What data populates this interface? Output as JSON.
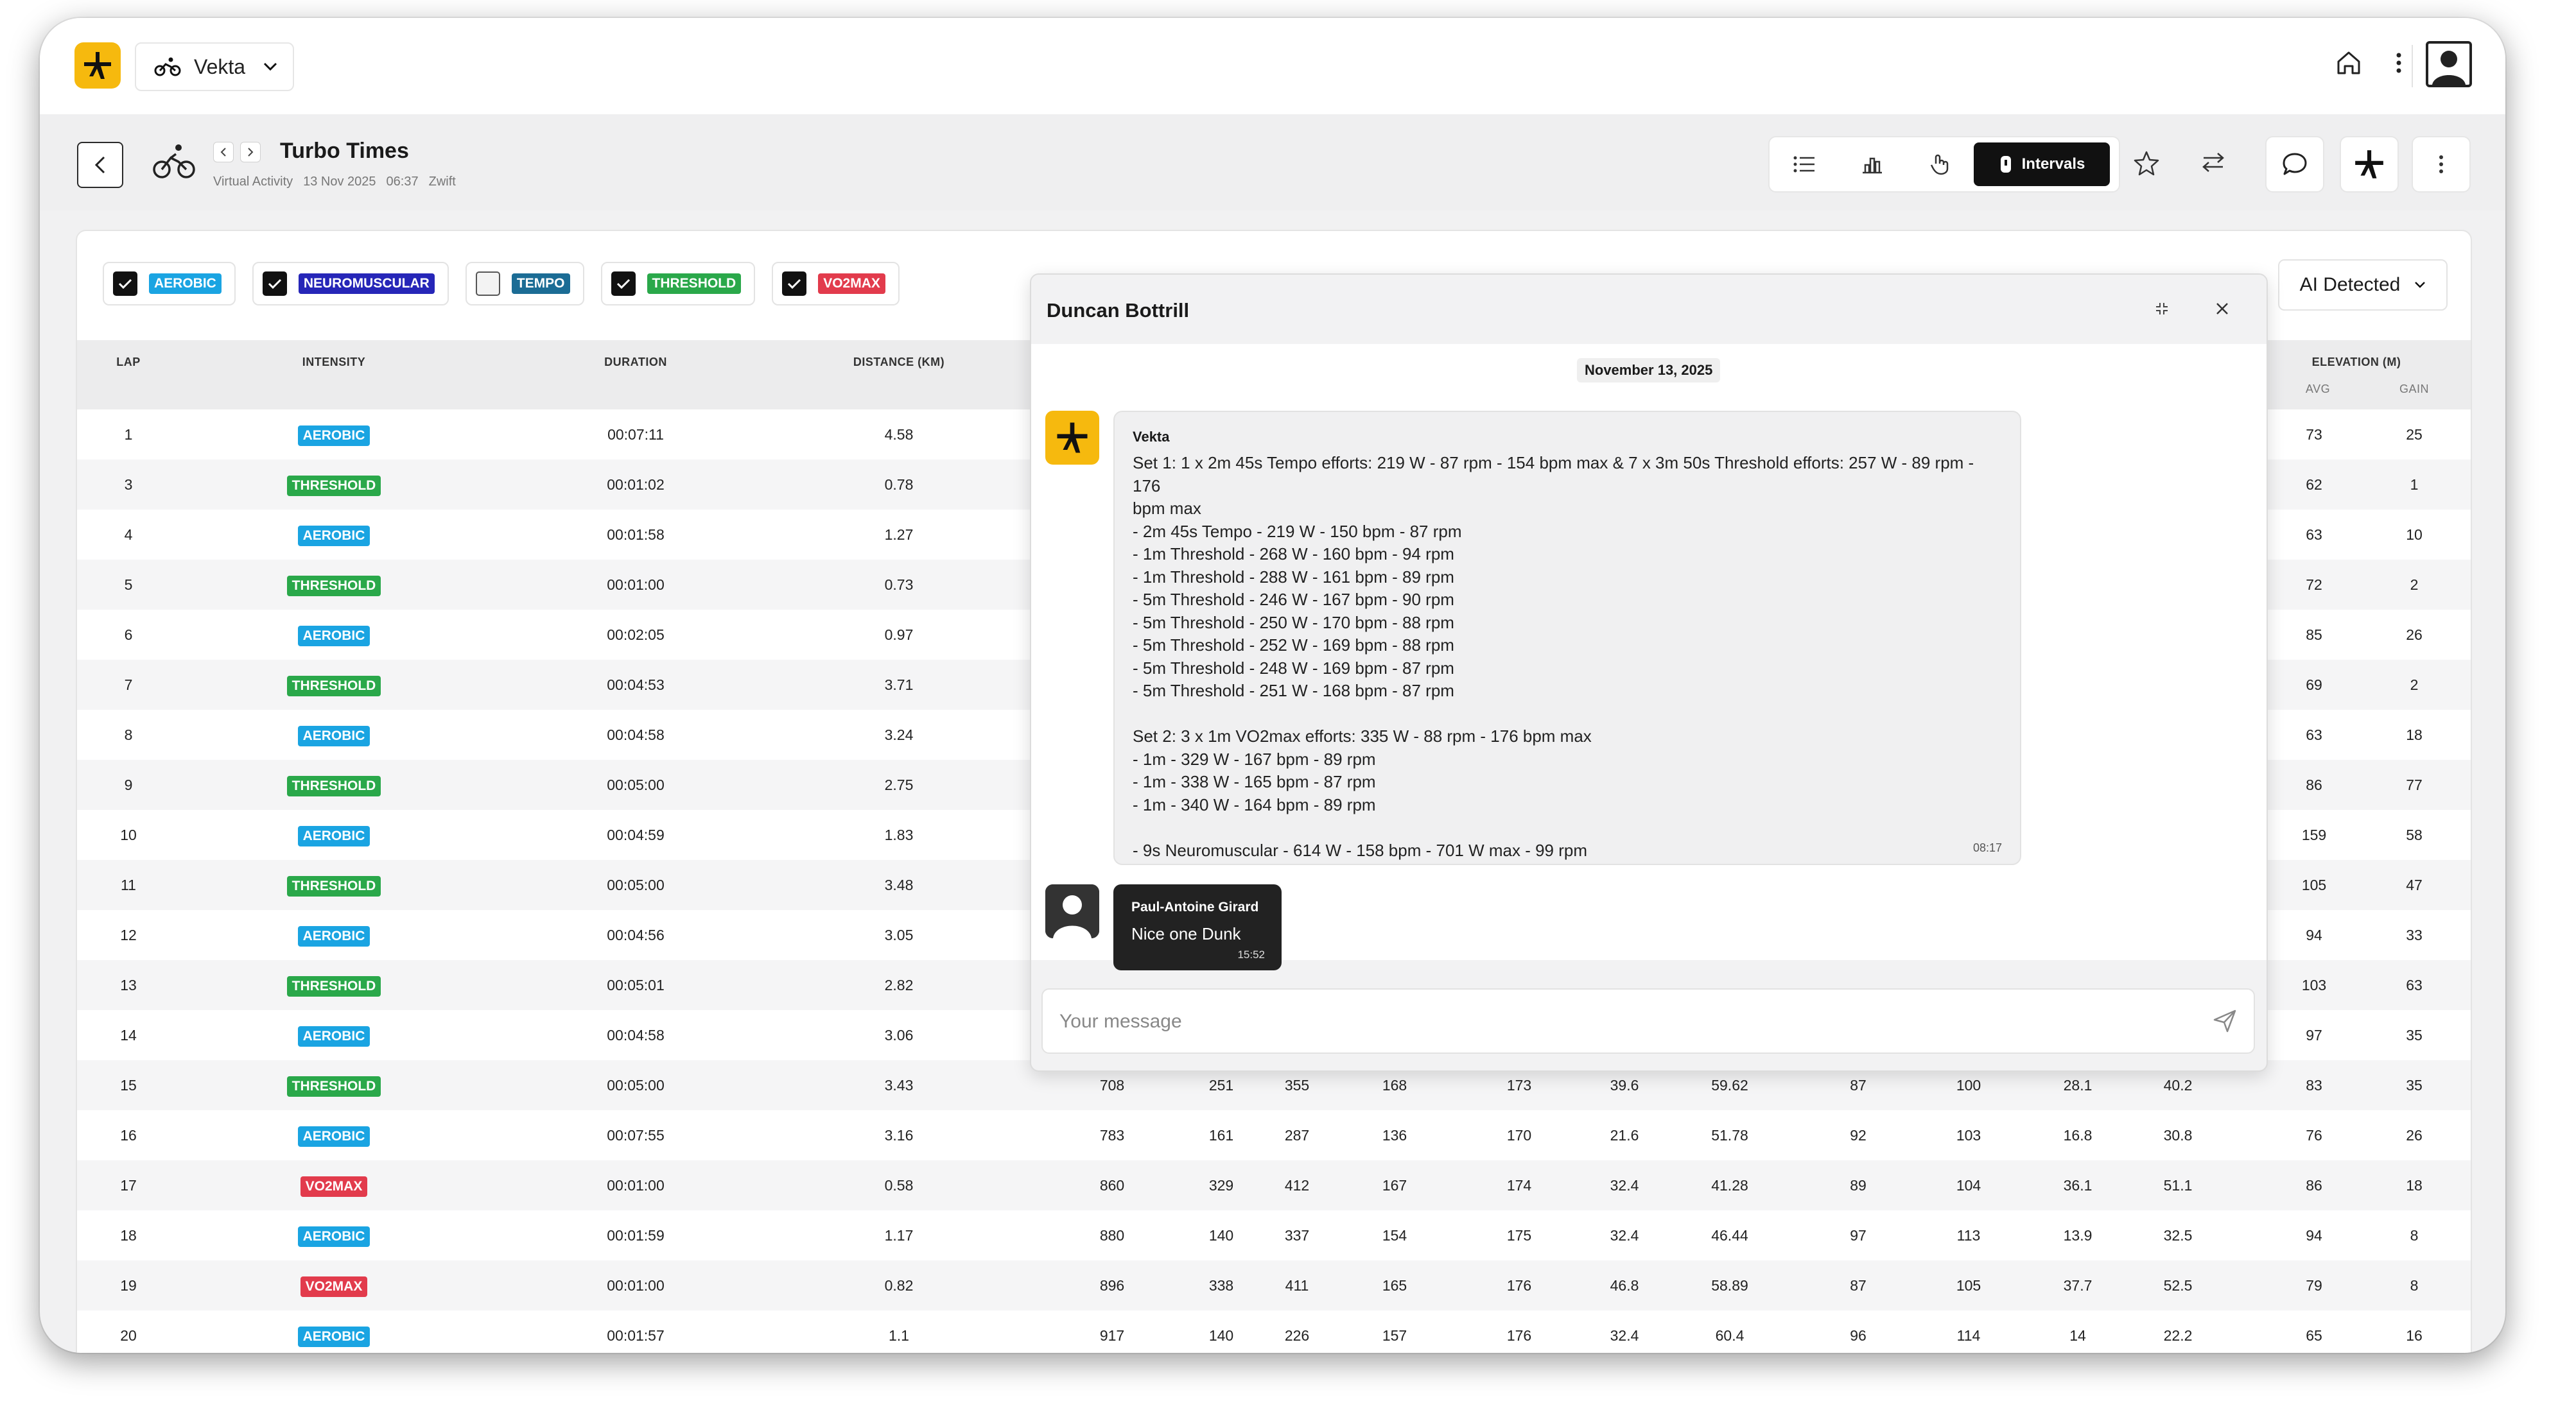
{
  "app": {
    "name": "Vekta"
  },
  "activity": {
    "title": "Turbo Times",
    "type": "Virtual Activity",
    "date": "13 Nov 2025",
    "time": "06:37",
    "platform": "Zwift"
  },
  "toolbar": {
    "active_tab": "Intervals"
  },
  "colors": {
    "aerobic": "#1aa4e2",
    "neuromuscular": "#2626b8",
    "tempo": "#1b6c95",
    "threshold": "#2aa84a",
    "vo2max": "#e23b4c",
    "brand": "#f6b90e"
  },
  "filters": [
    {
      "label": "AEROBIC",
      "checked": true,
      "color": "#1aa4e2"
    },
    {
      "label": "NEUROMUSCULAR",
      "checked": true,
      "color": "#2626b8"
    },
    {
      "label": "TEMPO",
      "checked": false,
      "color": "#1b6c95"
    },
    {
      "label": "THRESHOLD",
      "checked": true,
      "color": "#2aa84a"
    },
    {
      "label": "VO2MAX",
      "checked": true,
      "color": "#e23b4c"
    }
  ],
  "detection": {
    "selected": "AI Detected"
  },
  "table": {
    "headers": {
      "lap": "LAP",
      "intensity": "INTENSITY",
      "duration": "DURATION",
      "distance": "DISTANCE (KM)",
      "elevation": "ELEVATION (M)",
      "avg": "AVG",
      "gain": "GAIN"
    },
    "rows": [
      {
        "lap": "1",
        "intensity": "AEROBIC",
        "duration": "00:07:11",
        "distance": "4.58",
        "mid": [
          "",
          "",
          "",
          "",
          "",
          "",
          "",
          "",
          "",
          "",
          ""
        ],
        "elev_avg": "73",
        "elev_gain": "25"
      },
      {
        "lap": "3",
        "intensity": "THRESHOLD",
        "duration": "00:01:02",
        "distance": "0.78",
        "mid": [
          "",
          "",
          "",
          "",
          "",
          "",
          "",
          "",
          "",
          "",
          ""
        ],
        "elev_avg": "62",
        "elev_gain": "1"
      },
      {
        "lap": "4",
        "intensity": "AEROBIC",
        "duration": "00:01:58",
        "distance": "1.27",
        "mid": [
          "",
          "",
          "",
          "",
          "",
          "",
          "",
          "",
          "",
          "",
          ""
        ],
        "elev_avg": "63",
        "elev_gain": "10"
      },
      {
        "lap": "5",
        "intensity": "THRESHOLD",
        "duration": "00:01:00",
        "distance": "0.73",
        "mid": [
          "",
          "",
          "",
          "",
          "",
          "",
          "",
          "",
          "",
          "",
          ""
        ],
        "elev_avg": "72",
        "elev_gain": "2"
      },
      {
        "lap": "6",
        "intensity": "AEROBIC",
        "duration": "00:02:05",
        "distance": "0.97",
        "mid": [
          "",
          "",
          "",
          "",
          "",
          "",
          "",
          "",
          "",
          "",
          ""
        ],
        "elev_avg": "85",
        "elev_gain": "26"
      },
      {
        "lap": "7",
        "intensity": "THRESHOLD",
        "duration": "00:04:53",
        "distance": "3.71",
        "mid": [
          "",
          "",
          "",
          "",
          "",
          "",
          "",
          "",
          "",
          "",
          ""
        ],
        "elev_avg": "69",
        "elev_gain": "2"
      },
      {
        "lap": "8",
        "intensity": "AEROBIC",
        "duration": "00:04:58",
        "distance": "3.24",
        "mid": [
          "",
          "",
          "",
          "",
          "",
          "",
          "",
          "",
          "",
          "",
          ""
        ],
        "elev_avg": "63",
        "elev_gain": "18"
      },
      {
        "lap": "9",
        "intensity": "THRESHOLD",
        "duration": "00:05:00",
        "distance": "2.75",
        "mid": [
          "",
          "",
          "",
          "",
          "",
          "",
          "",
          "",
          "",
          "",
          ""
        ],
        "elev_avg": "86",
        "elev_gain": "77"
      },
      {
        "lap": "10",
        "intensity": "AEROBIC",
        "duration": "00:04:59",
        "distance": "1.83",
        "mid": [
          "",
          "",
          "",
          "",
          "",
          "",
          "",
          "",
          "",
          "",
          ""
        ],
        "elev_avg": "159",
        "elev_gain": "58"
      },
      {
        "lap": "11",
        "intensity": "THRESHOLD",
        "duration": "00:05:00",
        "distance": "3.48",
        "mid": [
          "",
          "",
          "",
          "",
          "",
          "",
          "",
          "",
          "",
          "",
          ""
        ],
        "elev_avg": "105",
        "elev_gain": "47"
      },
      {
        "lap": "12",
        "intensity": "AEROBIC",
        "duration": "00:04:56",
        "distance": "3.05",
        "mid": [
          "",
          "",
          "",
          "",
          "",
          "",
          "",
          "",
          "",
          "",
          ""
        ],
        "elev_avg": "94",
        "elev_gain": "33"
      },
      {
        "lap": "13",
        "intensity": "THRESHOLD",
        "duration": "00:05:01",
        "distance": "2.82",
        "mid": [
          "",
          "",
          "",
          "",
          "",
          "",
          "",
          "",
          "",
          "",
          ""
        ],
        "elev_avg": "103",
        "elev_gain": "63"
      },
      {
        "lap": "14",
        "intensity": "AEROBIC",
        "duration": "00:04:58",
        "distance": "3.06",
        "mid": [
          "",
          "",
          "",
          "",
          "",
          "",
          "",
          "",
          "",
          "",
          ""
        ],
        "elev_avg": "97",
        "elev_gain": "35"
      },
      {
        "lap": "15",
        "intensity": "THRESHOLD",
        "duration": "00:05:00",
        "distance": "3.43",
        "mid": [
          "708",
          "251",
          "355",
          "168",
          "173",
          "39.6",
          "59.62",
          "87",
          "100",
          "28.1",
          "40.2"
        ],
        "elev_avg": "83",
        "elev_gain": "35"
      },
      {
        "lap": "16",
        "intensity": "AEROBIC",
        "duration": "00:07:55",
        "distance": "3.16",
        "mid": [
          "783",
          "161",
          "287",
          "136",
          "170",
          "21.6",
          "51.78",
          "92",
          "103",
          "16.8",
          "30.8"
        ],
        "elev_avg": "76",
        "elev_gain": "26"
      },
      {
        "lap": "17",
        "intensity": "VO2MAX",
        "duration": "00:01:00",
        "distance": "0.58",
        "mid": [
          "860",
          "329",
          "412",
          "167",
          "174",
          "32.4",
          "41.28",
          "89",
          "104",
          "36.1",
          "51.1"
        ],
        "elev_avg": "86",
        "elev_gain": "18"
      },
      {
        "lap": "18",
        "intensity": "AEROBIC",
        "duration": "00:01:59",
        "distance": "1.17",
        "mid": [
          "880",
          "140",
          "337",
          "154",
          "175",
          "32.4",
          "46.44",
          "97",
          "113",
          "13.9",
          "32.5"
        ],
        "elev_avg": "94",
        "elev_gain": "8"
      },
      {
        "lap": "19",
        "intensity": "VO2MAX",
        "duration": "00:01:00",
        "distance": "0.82",
        "mid": [
          "896",
          "338",
          "411",
          "165",
          "176",
          "46.8",
          "58.89",
          "87",
          "105",
          "37.7",
          "52.5"
        ],
        "elev_avg": "79",
        "elev_gain": "8"
      },
      {
        "lap": "20",
        "intensity": "AEROBIC",
        "duration": "00:01:57",
        "distance": "1.1",
        "mid": [
          "917",
          "140",
          "226",
          "157",
          "176",
          "32.4",
          "60.4",
          "96",
          "114",
          "14",
          "22.2"
        ],
        "elev_avg": "65",
        "elev_gain": "16"
      }
    ]
  },
  "chat": {
    "title": "Duncan Bottrill",
    "date": "November 13, 2025",
    "messages": [
      {
        "author": "Vekta",
        "time": "08:17",
        "lines": [
          "Set 1: 1 x 2m 45s Tempo efforts: 219 W - 87 rpm - 154 bpm max & 7 x 3m 50s Threshold efforts: 257 W - 89 rpm - 176",
          "bpm max",
          "- 2m 45s Tempo - 219 W - 150 bpm - 87 rpm",
          "- 1m Threshold - 268 W - 160 bpm - 94 rpm",
          "- 1m Threshold - 288 W - 161 bpm - 89 rpm",
          "- 5m Threshold - 246 W - 167 bpm - 90 rpm",
          "- 5m Threshold - 250 W - 170 bpm - 88 rpm",
          "- 5m Threshold - 252 W - 169 bpm - 88 rpm",
          "- 5m Threshold - 248 W - 169 bpm - 87 rpm",
          "- 5m Threshold - 251 W - 168 bpm - 87 rpm",
          "",
          "Set 2: 3 x 1m VO2max efforts: 335 W - 88 rpm - 176 bpm max",
          "- 1m - 329 W - 167 bpm - 89 rpm",
          "- 1m - 338 W - 165 bpm - 87 rpm",
          "- 1m - 340 W - 164 bpm - 89 rpm",
          "",
          "- 9s Neuromuscular - 614 W - 158 bpm - 701 W max - 99 rpm"
        ]
      },
      {
        "author": "Paul-Antoine Girard",
        "text": "Nice one Dunk",
        "time": "15:52"
      }
    ],
    "input_placeholder": "Your message"
  }
}
